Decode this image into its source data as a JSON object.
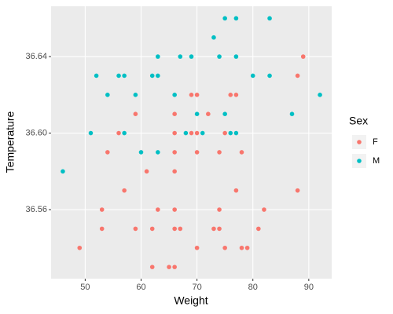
{
  "chart_data": {
    "type": "scatter",
    "x_label": "Weight",
    "y_label": "Temperature",
    "legend_title": "Sex",
    "legend_position": "right",
    "grid": true,
    "xlim": [
      43.9,
      94.1
    ],
    "ylim": [
      36.5239,
      36.6663
    ],
    "xticks": [
      50,
      60,
      70,
      80,
      90
    ],
    "yticks": [
      36.56,
      {
        "value": 36.6,
        "label": "36.60"
      },
      36.64
    ],
    "series": [
      {
        "name": "F",
        "color": "#F8766D",
        "x": [
          89,
          88,
          76,
          77,
          69,
          70,
          59,
          66,
          72,
          56,
          66,
          69,
          70,
          75,
          54,
          66,
          70,
          74,
          78,
          61,
          66,
          57,
          77,
          88,
          53,
          63,
          66,
          74,
          82,
          53,
          59,
          62,
          66,
          67,
          73,
          74,
          81,
          49,
          70,
          75,
          78,
          79,
          62,
          65,
          66
        ],
        "values": [
          36.64,
          36.63,
          36.62,
          36.62,
          36.62,
          36.62,
          36.61,
          36.61,
          36.61,
          36.6,
          36.6,
          36.6,
          36.6,
          36.6,
          36.59,
          36.59,
          36.59,
          36.59,
          36.59,
          36.58,
          36.58,
          36.57,
          36.57,
          36.57,
          36.56,
          36.56,
          36.56,
          36.56,
          36.56,
          36.55,
          36.55,
          36.55,
          36.55,
          36.55,
          36.55,
          36.55,
          36.55,
          36.54,
          36.54,
          36.54,
          36.54,
          36.54,
          36.53,
          36.53,
          36.53
        ]
      },
      {
        "name": "M",
        "color": "#00BFC4",
        "x": [
          75,
          77,
          83,
          73,
          63,
          67,
          69,
          74,
          77,
          52,
          56,
          57,
          62,
          63,
          80,
          83,
          54,
          59,
          66,
          92,
          87,
          70,
          75,
          51,
          57,
          68,
          71,
          76,
          77,
          60,
          63,
          46
        ],
        "values": [
          36.66,
          36.66,
          36.66,
          36.65,
          36.64,
          36.64,
          36.64,
          36.64,
          36.64,
          36.63,
          36.63,
          36.63,
          36.63,
          36.63,
          36.63,
          36.63,
          36.62,
          36.62,
          36.62,
          36.62,
          36.61,
          36.61,
          36.61,
          36.6,
          36.6,
          36.6,
          36.6,
          36.6,
          36.6,
          36.59,
          36.59,
          36.58
        ]
      }
    ]
  }
}
